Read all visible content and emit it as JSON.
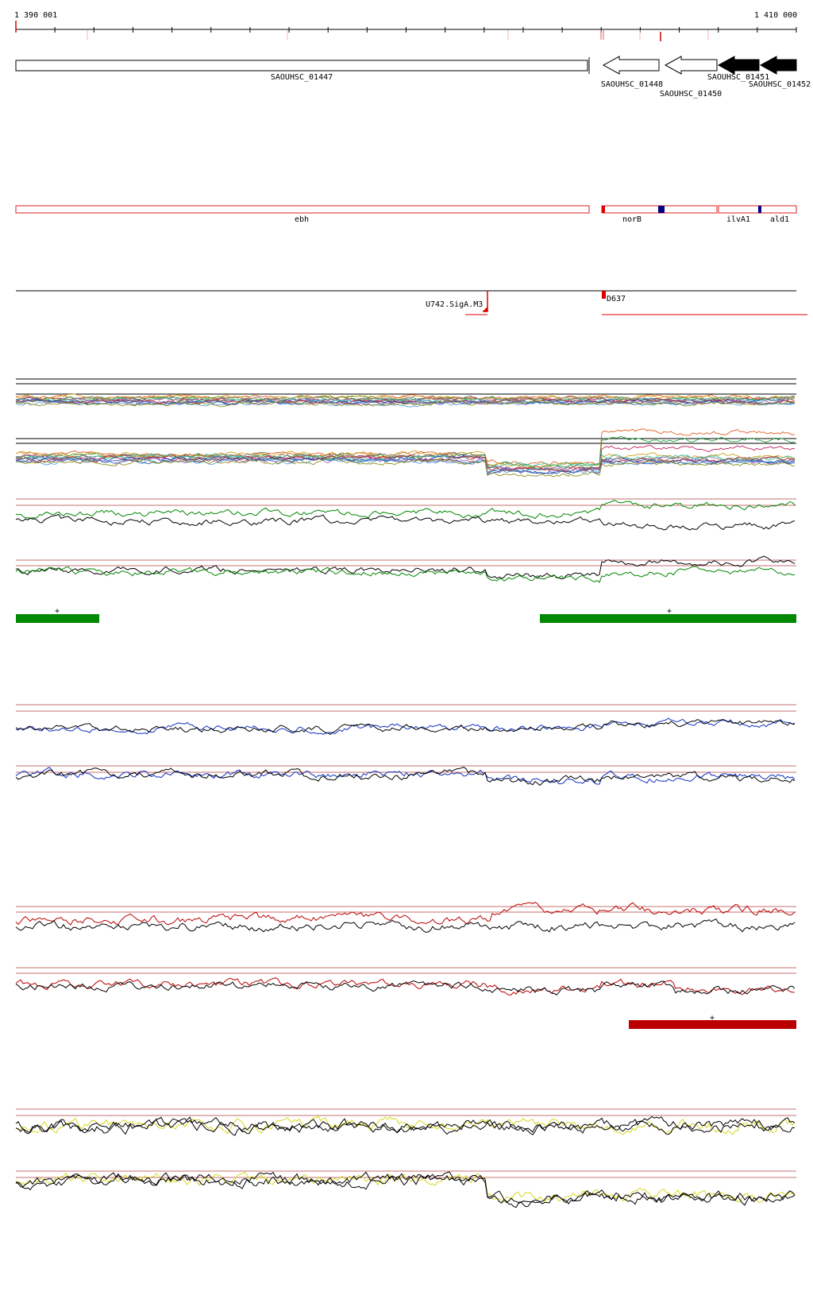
{
  "ruler": {
    "start_label": "1 390 001",
    "end_label": "1 410 000"
  },
  "genes": [
    {
      "name": "SAOUHSC_01447",
      "strand": "+",
      "filled": false
    },
    {
      "name": "SAOUHSC_01448",
      "strand": "-",
      "filled": false
    },
    {
      "name": "SAOUHSC_01450",
      "strand": "-",
      "filled": false
    },
    {
      "name": "SAOUHSC_01451",
      "strand": "-",
      "filled": true
    },
    {
      "name": "SAOUHSC_01452",
      "strand": "-",
      "filled": true
    }
  ],
  "features": [
    {
      "name": "ebh"
    },
    {
      "name": "norB"
    },
    {
      "name": "ilvA1"
    },
    {
      "name": "ald1"
    }
  ],
  "annotations": {
    "left": "U742.SigA.M3",
    "right": "D637"
  },
  "segments": {
    "green_left_sign": "+",
    "green_right_sign": "+",
    "red_sign": "+"
  },
  "colors": {
    "green": "#008800",
    "red": "#bb0000",
    "blue": "#1030c0",
    "yellow": "#d8d820",
    "threshold": "#b04040"
  }
}
